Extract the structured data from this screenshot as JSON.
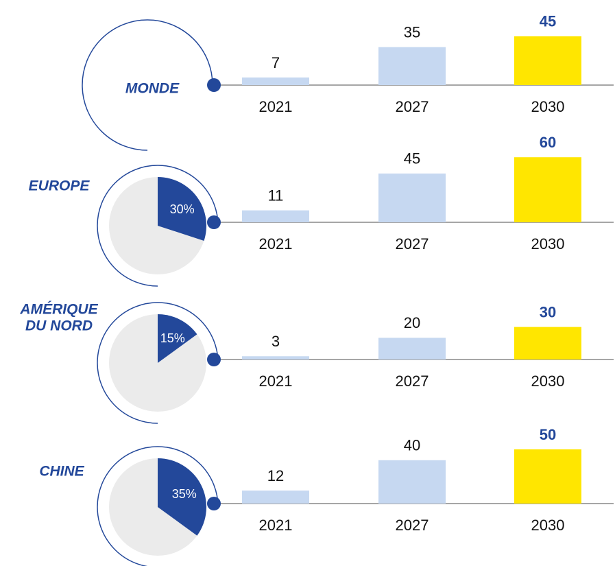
{
  "chart_data": [
    {
      "type": "bar",
      "title": [
        "MONDE"
      ],
      "categories": [
        "2021",
        "2027",
        "2030"
      ],
      "values": [
        7,
        35,
        45
      ],
      "colors": [
        "#c6d8f1",
        "#c6d8f1",
        "#ffe600"
      ]
    },
    {
      "type": "bar",
      "title": [
        "EUROPE"
      ],
      "categories": [
        "2021",
        "2027",
        "2030"
      ],
      "values": [
        11,
        45,
        60
      ],
      "colors": [
        "#c6d8f1",
        "#c6d8f1",
        "#ffe600"
      ],
      "pie": {
        "type": "pie",
        "values": [
          30
        ],
        "value_labels": [
          "30%"
        ],
        "color": "#23489a"
      }
    },
    {
      "type": "bar",
      "title": [
        "AMÉRIQUE",
        "DU NORD"
      ],
      "categories": [
        "2021",
        "2027",
        "2030"
      ],
      "values": [
        3,
        20,
        30
      ],
      "colors": [
        "#c6d8f1",
        "#c6d8f1",
        "#ffe600"
      ],
      "pie": {
        "type": "pie",
        "values": [
          15
        ],
        "value_labels": [
          "15%"
        ],
        "color": "#23489a"
      }
    },
    {
      "type": "bar",
      "title": [
        "CHINE"
      ],
      "categories": [
        "2021",
        "2027",
        "2030"
      ],
      "values": [
        12,
        40,
        50
      ],
      "colors": [
        "#c6d8f1",
        "#c6d8f1",
        "#ffe600"
      ],
      "pie": {
        "type": "pie",
        "values": [
          35
        ],
        "value_labels": [
          "35%"
        ],
        "color": "#23489a"
      }
    }
  ]
}
